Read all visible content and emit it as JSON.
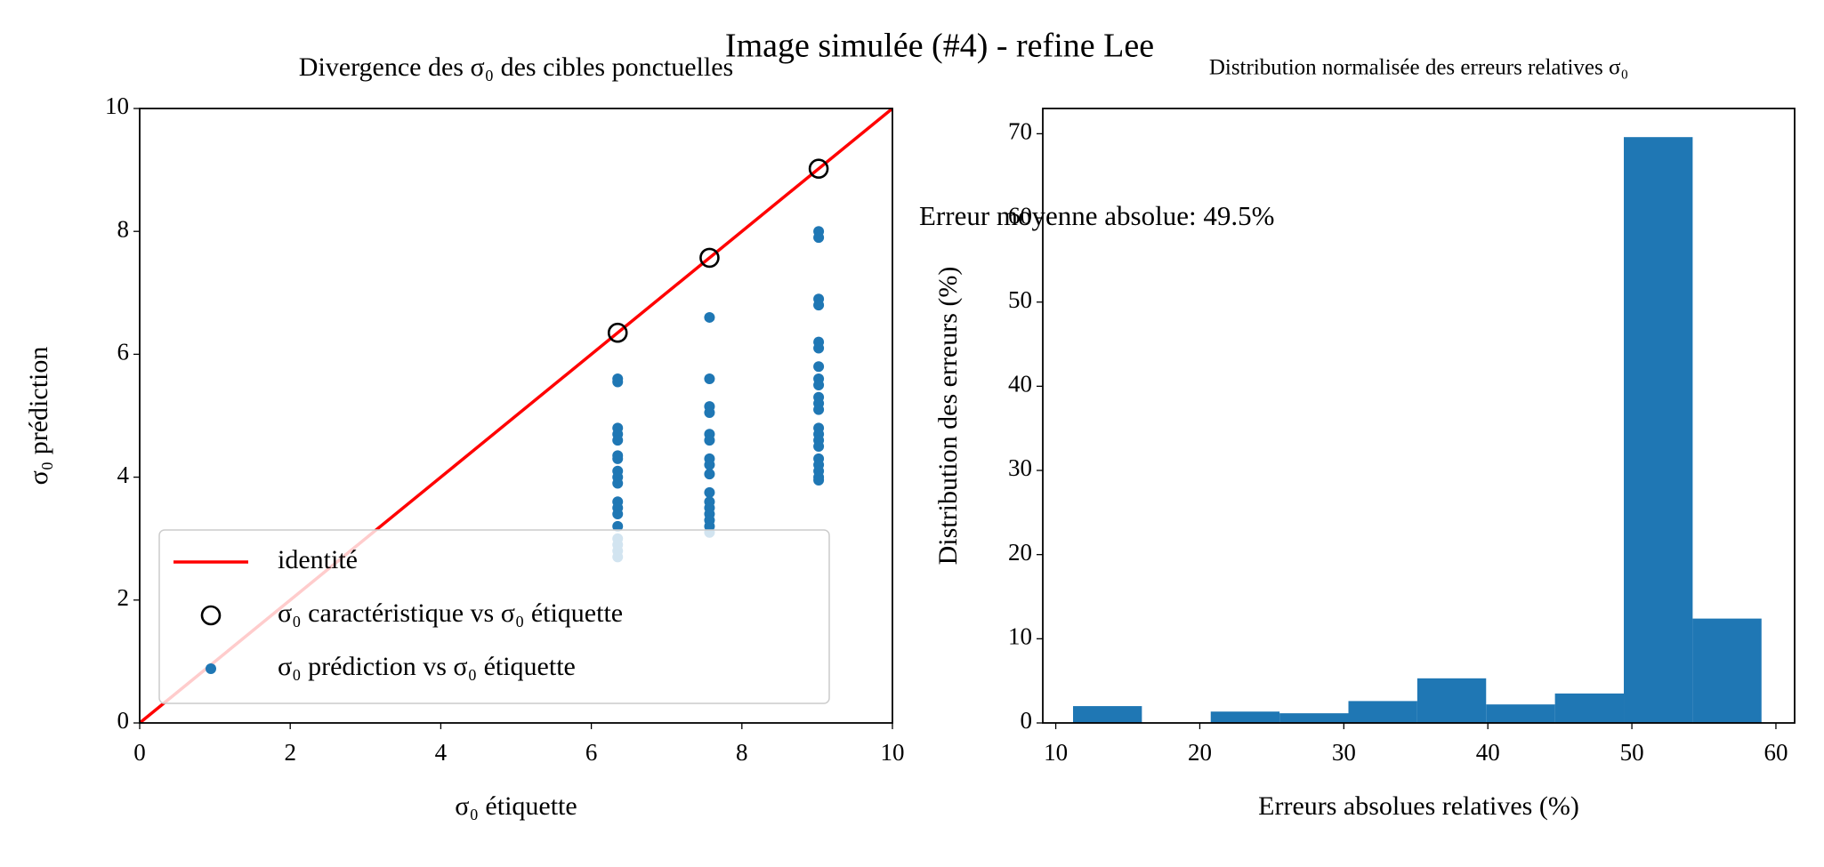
{
  "figure_title": "Image simulée (#4) - refine Lee",
  "chart_data": [
    {
      "type": "scatter",
      "title": "Divergence des σ₀ des cibles ponctuelles",
      "xlabel": "σ₀ étiquette",
      "ylabel": "σ₀ prédiction",
      "xlim": [
        0,
        10
      ],
      "ylim": [
        0,
        10
      ],
      "xticks": [
        0,
        2,
        4,
        6,
        8,
        10
      ],
      "yticks": [
        0,
        2,
        4,
        6,
        8,
        10
      ],
      "legend": "lower left",
      "series": [
        {
          "name": "identité",
          "color": "#ff0000",
          "style": "line",
          "x": [
            0,
            10
          ],
          "y": [
            0,
            10
          ]
        },
        {
          "name": "σ₀ caractéristique vs σ₀ étiquette",
          "color": "#000000",
          "style": "hollow",
          "x": [
            6.35,
            7.57,
            9.02
          ],
          "y": [
            6.35,
            7.57,
            9.02
          ]
        },
        {
          "name": "σ₀ prédiction vs σ₀ étiquette",
          "color": "#1f77b4",
          "style": "filled",
          "x": [
            6.35,
            6.35,
            6.35,
            6.35,
            6.35,
            6.35,
            6.35,
            6.35,
            6.35,
            6.35,
            6.35,
            6.35,
            6.35,
            6.35,
            6.35,
            6.35,
            6.35,
            6.35,
            7.57,
            7.57,
            7.57,
            7.57,
            7.57,
            7.57,
            7.57,
            7.57,
            7.57,
            7.57,
            7.57,
            7.57,
            7.57,
            7.57,
            7.57,
            7.57,
            9.02,
            9.02,
            9.02,
            9.02,
            9.02,
            9.02,
            9.02,
            9.02,
            9.02,
            9.02,
            9.02,
            9.02,
            9.02,
            9.02,
            9.02,
            9.02,
            9.02,
            9.02,
            9.02,
            9.02,
            9.02
          ],
          "y": [
            5.6,
            5.55,
            4.8,
            4.7,
            4.6,
            4.35,
            4.3,
            4.1,
            4.0,
            3.9,
            3.6,
            3.5,
            3.4,
            3.2,
            3.0,
            2.9,
            2.8,
            2.7,
            6.6,
            5.6,
            5.15,
            5.05,
            4.7,
            4.6,
            4.3,
            4.2,
            4.05,
            3.75,
            3.6,
            3.5,
            3.4,
            3.3,
            3.2,
            3.1,
            8.0,
            7.9,
            6.9,
            6.8,
            6.2,
            6.1,
            5.8,
            5.6,
            5.5,
            5.3,
            5.2,
            5.1,
            4.8,
            4.7,
            4.6,
            4.5,
            4.3,
            4.2,
            4.1,
            4.0,
            3.95
          ]
        }
      ]
    },
    {
      "type": "histogram",
      "title": "Distribution normalisée des erreurs relatives σ₀",
      "xlabel": "Erreurs absolues relatives (%)",
      "ylabel": "Distribution des erreurs (%)",
      "annotation": "Erreur moyenne absolue: 49.5%",
      "color": "#1f77b4",
      "xlim": [
        9.1,
        61.3
      ],
      "ylim": [
        0,
        73
      ],
      "xticks": [
        10,
        20,
        30,
        40,
        50,
        60
      ],
      "yticks": [
        0,
        10,
        20,
        30,
        40,
        50,
        60,
        70
      ],
      "bins": [
        11.2,
        15.98,
        20.76,
        25.54,
        30.32,
        35.1,
        39.88,
        44.66,
        49.44,
        54.22,
        59.0
      ],
      "values": [
        2.0,
        0,
        1.35,
        1.15,
        2.6,
        5.3,
        2.2,
        3.5,
        69.6,
        12.4
      ]
    }
  ]
}
